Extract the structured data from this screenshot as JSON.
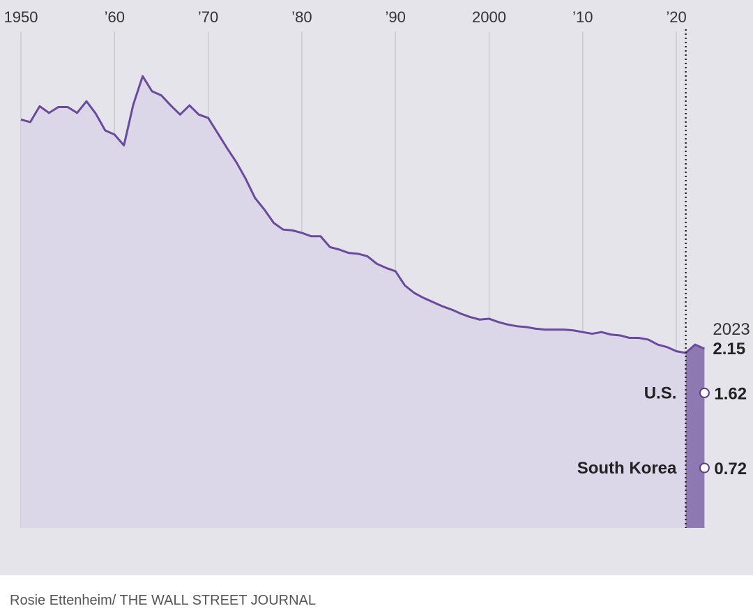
{
  "credit": "Rosie Ettenheim/ THE WALL STREET JOURNAL",
  "colors": {
    "line": "#6a4a9c",
    "area": "#dcd6e9",
    "highlight": "#8f79b3",
    "background": "#e4e4ea",
    "grid": "#c9c9d1"
  },
  "chart_data": {
    "type": "area",
    "title": "",
    "xlabel": "",
    "ylabel": "",
    "xlim": [
      1950,
      2023
    ],
    "ylim": [
      0,
      6
    ],
    "grid": "vertical",
    "x_ticks": [
      {
        "value": 1950,
        "label": "1950"
      },
      {
        "value": 1960,
        "label": "’60"
      },
      {
        "value": 1970,
        "label": "’70"
      },
      {
        "value": 1980,
        "label": "’80"
      },
      {
        "value": 1990,
        "label": "’90"
      },
      {
        "value": 2000,
        "label": "2000"
      },
      {
        "value": 2010,
        "label": "’10"
      },
      {
        "value": 2020,
        "label": "’20"
      }
    ],
    "highlight_range": [
      2021,
      2023
    ],
    "reference_line_x": 2021,
    "end_label": {
      "year": "2023",
      "value": "2.15"
    },
    "series": [
      {
        "x": [
          1950,
          1951,
          1952,
          1953,
          1954,
          1955,
          1956,
          1957,
          1958,
          1959,
          1960,
          1961,
          1962,
          1963,
          1964,
          1965,
          1966,
          1967,
          1968,
          1969,
          1970,
          1971,
          1972,
          1973,
          1974,
          1975,
          1976,
          1977,
          1978,
          1979,
          1980,
          1981,
          1982,
          1983,
          1984,
          1985,
          1986,
          1987,
          1988,
          1989,
          1990,
          1991,
          1992,
          1993,
          1994,
          1995,
          1996,
          1997,
          1998,
          1999,
          2000,
          2001,
          2002,
          2003,
          2004,
          2005,
          2006,
          2007,
          2008,
          2009,
          2010,
          2011,
          2012,
          2013,
          2014,
          2015,
          2016,
          2017,
          2018,
          2019,
          2020,
          2021,
          2022,
          2023
        ],
        "y": [
          4.9,
          4.87,
          5.06,
          4.98,
          5.05,
          5.05,
          4.98,
          5.12,
          4.97,
          4.77,
          4.72,
          4.59,
          5.08,
          5.42,
          5.24,
          5.19,
          5.07,
          4.96,
          5.07,
          4.96,
          4.92,
          4.74,
          4.56,
          4.39,
          4.19,
          3.96,
          3.82,
          3.66,
          3.58,
          3.57,
          3.54,
          3.5,
          3.5,
          3.37,
          3.34,
          3.3,
          3.29,
          3.26,
          3.17,
          3.12,
          3.08,
          2.91,
          2.82,
          2.76,
          2.71,
          2.66,
          2.62,
          2.57,
          2.53,
          2.5,
          2.51,
          2.47,
          2.44,
          2.42,
          2.41,
          2.39,
          2.38,
          2.38,
          2.38,
          2.37,
          2.35,
          2.33,
          2.35,
          2.32,
          2.31,
          2.28,
          2.28,
          2.26,
          2.2,
          2.17,
          2.12,
          2.1,
          2.2,
          2.15
        ]
      }
    ],
    "markers": [
      {
        "name": "U.S.",
        "value": 1.62,
        "label": "1.62"
      },
      {
        "name": "South Korea",
        "value": 0.72,
        "label": "0.72"
      }
    ]
  }
}
